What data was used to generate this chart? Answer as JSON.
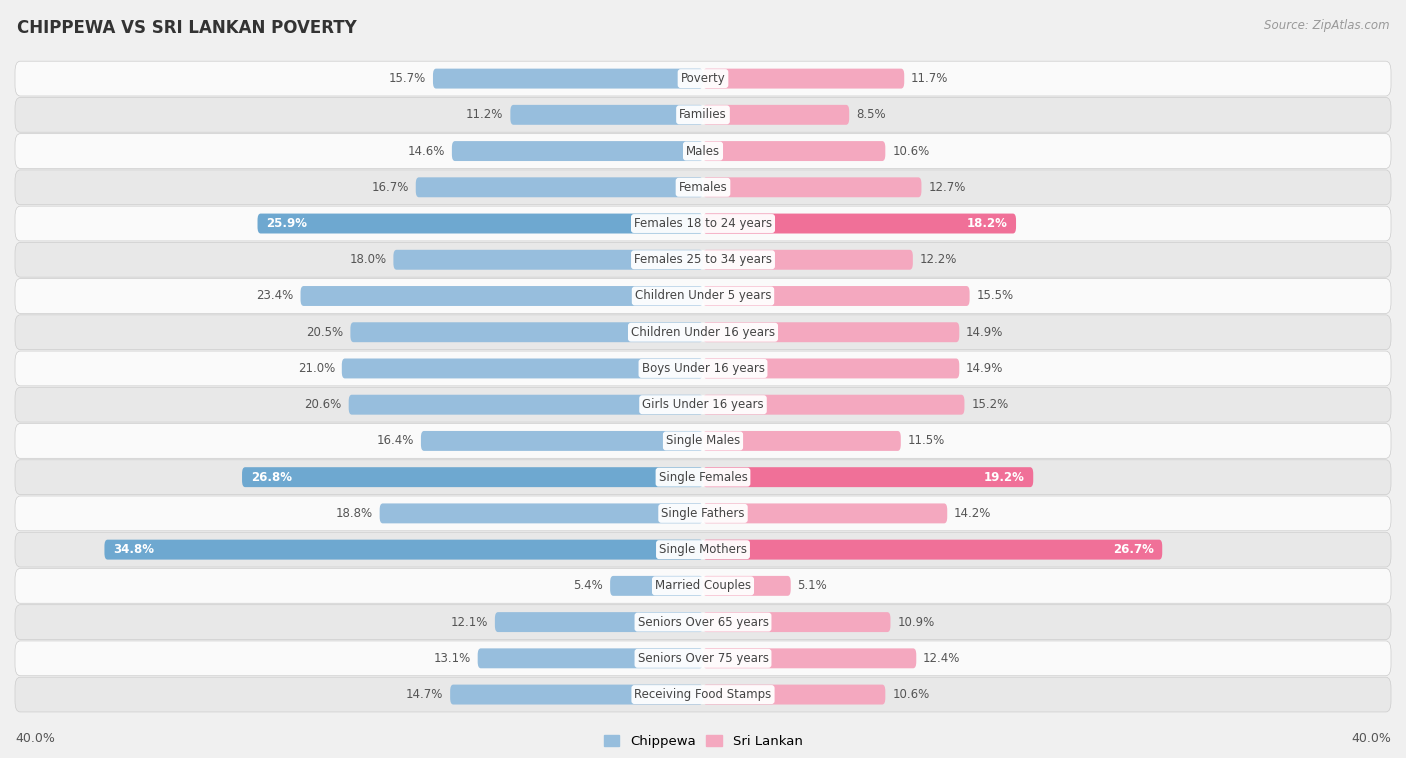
{
  "title": "CHIPPEWA VS SRI LANKAN POVERTY",
  "source": "Source: ZipAtlas.com",
  "categories": [
    "Poverty",
    "Families",
    "Males",
    "Females",
    "Females 18 to 24 years",
    "Females 25 to 34 years",
    "Children Under 5 years",
    "Children Under 16 years",
    "Boys Under 16 years",
    "Girls Under 16 years",
    "Single Males",
    "Single Females",
    "Single Fathers",
    "Single Mothers",
    "Married Couples",
    "Seniors Over 65 years",
    "Seniors Over 75 years",
    "Receiving Food Stamps"
  ],
  "chippewa": [
    15.7,
    11.2,
    14.6,
    16.7,
    25.9,
    18.0,
    23.4,
    20.5,
    21.0,
    20.6,
    16.4,
    26.8,
    18.8,
    34.8,
    5.4,
    12.1,
    13.1,
    14.7
  ],
  "sri_lankan": [
    11.7,
    8.5,
    10.6,
    12.7,
    18.2,
    12.2,
    15.5,
    14.9,
    14.9,
    15.2,
    11.5,
    19.2,
    14.2,
    26.7,
    5.1,
    10.9,
    12.4,
    10.6
  ],
  "chippewa_color": "#97bedd",
  "sri_lankan_color": "#f4a8bf",
  "chippewa_highlight_color": "#6ea8d0",
  "sri_lankan_highlight_color": "#f07098",
  "highlight_indices": [
    4,
    11,
    13
  ],
  "background_color": "#f0f0f0",
  "row_color_light": "#fafafa",
  "row_color_dark": "#e8e8e8",
  "axis_limit": 40.0,
  "bar_height": 0.55,
  "label_fontsize": 8.5,
  "value_fontsize": 8.5,
  "title_fontsize": 12,
  "source_fontsize": 8.5,
  "legend_fontsize": 9.5
}
